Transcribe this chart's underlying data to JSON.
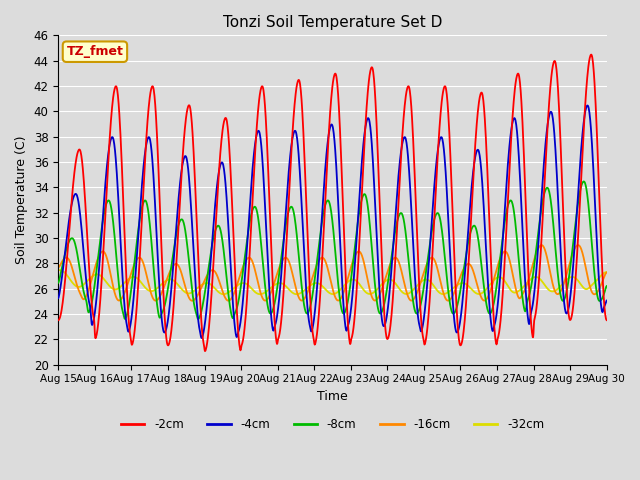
{
  "title": "Tonzi Soil Temperature Set D",
  "xlabel": "Time",
  "ylabel": "Soil Temperature (C)",
  "ylim": [
    20,
    46
  ],
  "yticks": [
    20,
    22,
    24,
    26,
    28,
    30,
    32,
    34,
    36,
    38,
    40,
    42,
    44,
    46
  ],
  "bg_color": "#dcdcdc",
  "grid_color": "#ffffff",
  "series_colors": [
    "#ff0000",
    "#0000cc",
    "#00bb00",
    "#ff8800",
    "#dddd00"
  ],
  "series_labels": [
    "-2cm",
    "-4cm",
    "-8cm",
    "-16cm",
    "-32cm"
  ],
  "annotation_text": "TZ_fmet",
  "annotation_color": "#cc0000",
  "annotation_bg": "#ffffcc",
  "annotation_border": "#cc9900",
  "start_day": 15,
  "end_day": 30,
  "n_points": 1500
}
